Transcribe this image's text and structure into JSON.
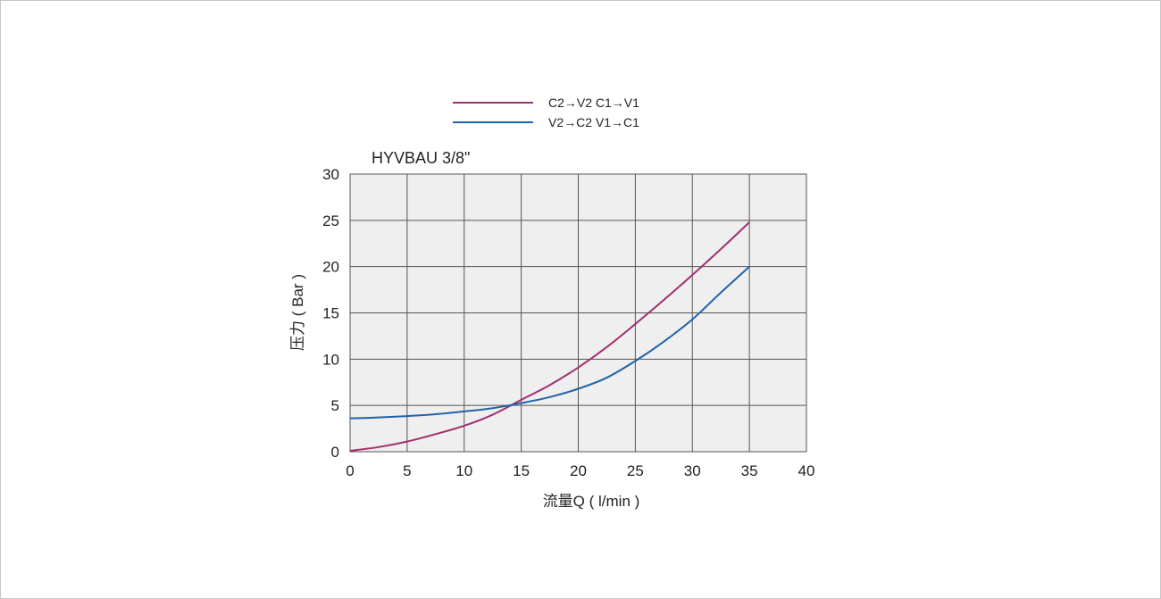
{
  "chart_data": {
    "type": "line",
    "title": "HYVBAU 3/8\"",
    "xlabel": "流量Q ( l/min )",
    "ylabel": "压力 ( Bar )",
    "xlim": [
      0,
      40
    ],
    "ylim": [
      0,
      30
    ],
    "xticks": [
      0,
      5,
      10,
      15,
      20,
      25,
      30,
      35,
      40
    ],
    "yticks": [
      0,
      5,
      10,
      15,
      20,
      25,
      30
    ],
    "grid": true,
    "legend_position": "top",
    "series": [
      {
        "name": "C2→V2   C1→V1",
        "color": "#a0306e",
        "x": [
          0,
          2.5,
          5,
          7.5,
          10,
          12.5,
          15,
          17.5,
          20,
          22.5,
          25,
          27.5,
          30,
          32.5,
          35
        ],
        "y": [
          0.1,
          0.5,
          1.1,
          1.9,
          2.8,
          4.0,
          5.6,
          7.2,
          9.1,
          11.3,
          13.8,
          16.4,
          19.1,
          21.9,
          24.8
        ]
      },
      {
        "name": "V2→C2   V1→C1",
        "color": "#1f63a8",
        "x": [
          0,
          2.5,
          5,
          7.5,
          10,
          12.5,
          15,
          17.5,
          20,
          22.5,
          25,
          27.5,
          30,
          32.5,
          35
        ],
        "y": [
          3.6,
          3.7,
          3.85,
          4.05,
          4.35,
          4.7,
          5.25,
          5.9,
          6.8,
          8.0,
          9.8,
          11.9,
          14.3,
          17.2,
          20.0
        ]
      }
    ]
  }
}
